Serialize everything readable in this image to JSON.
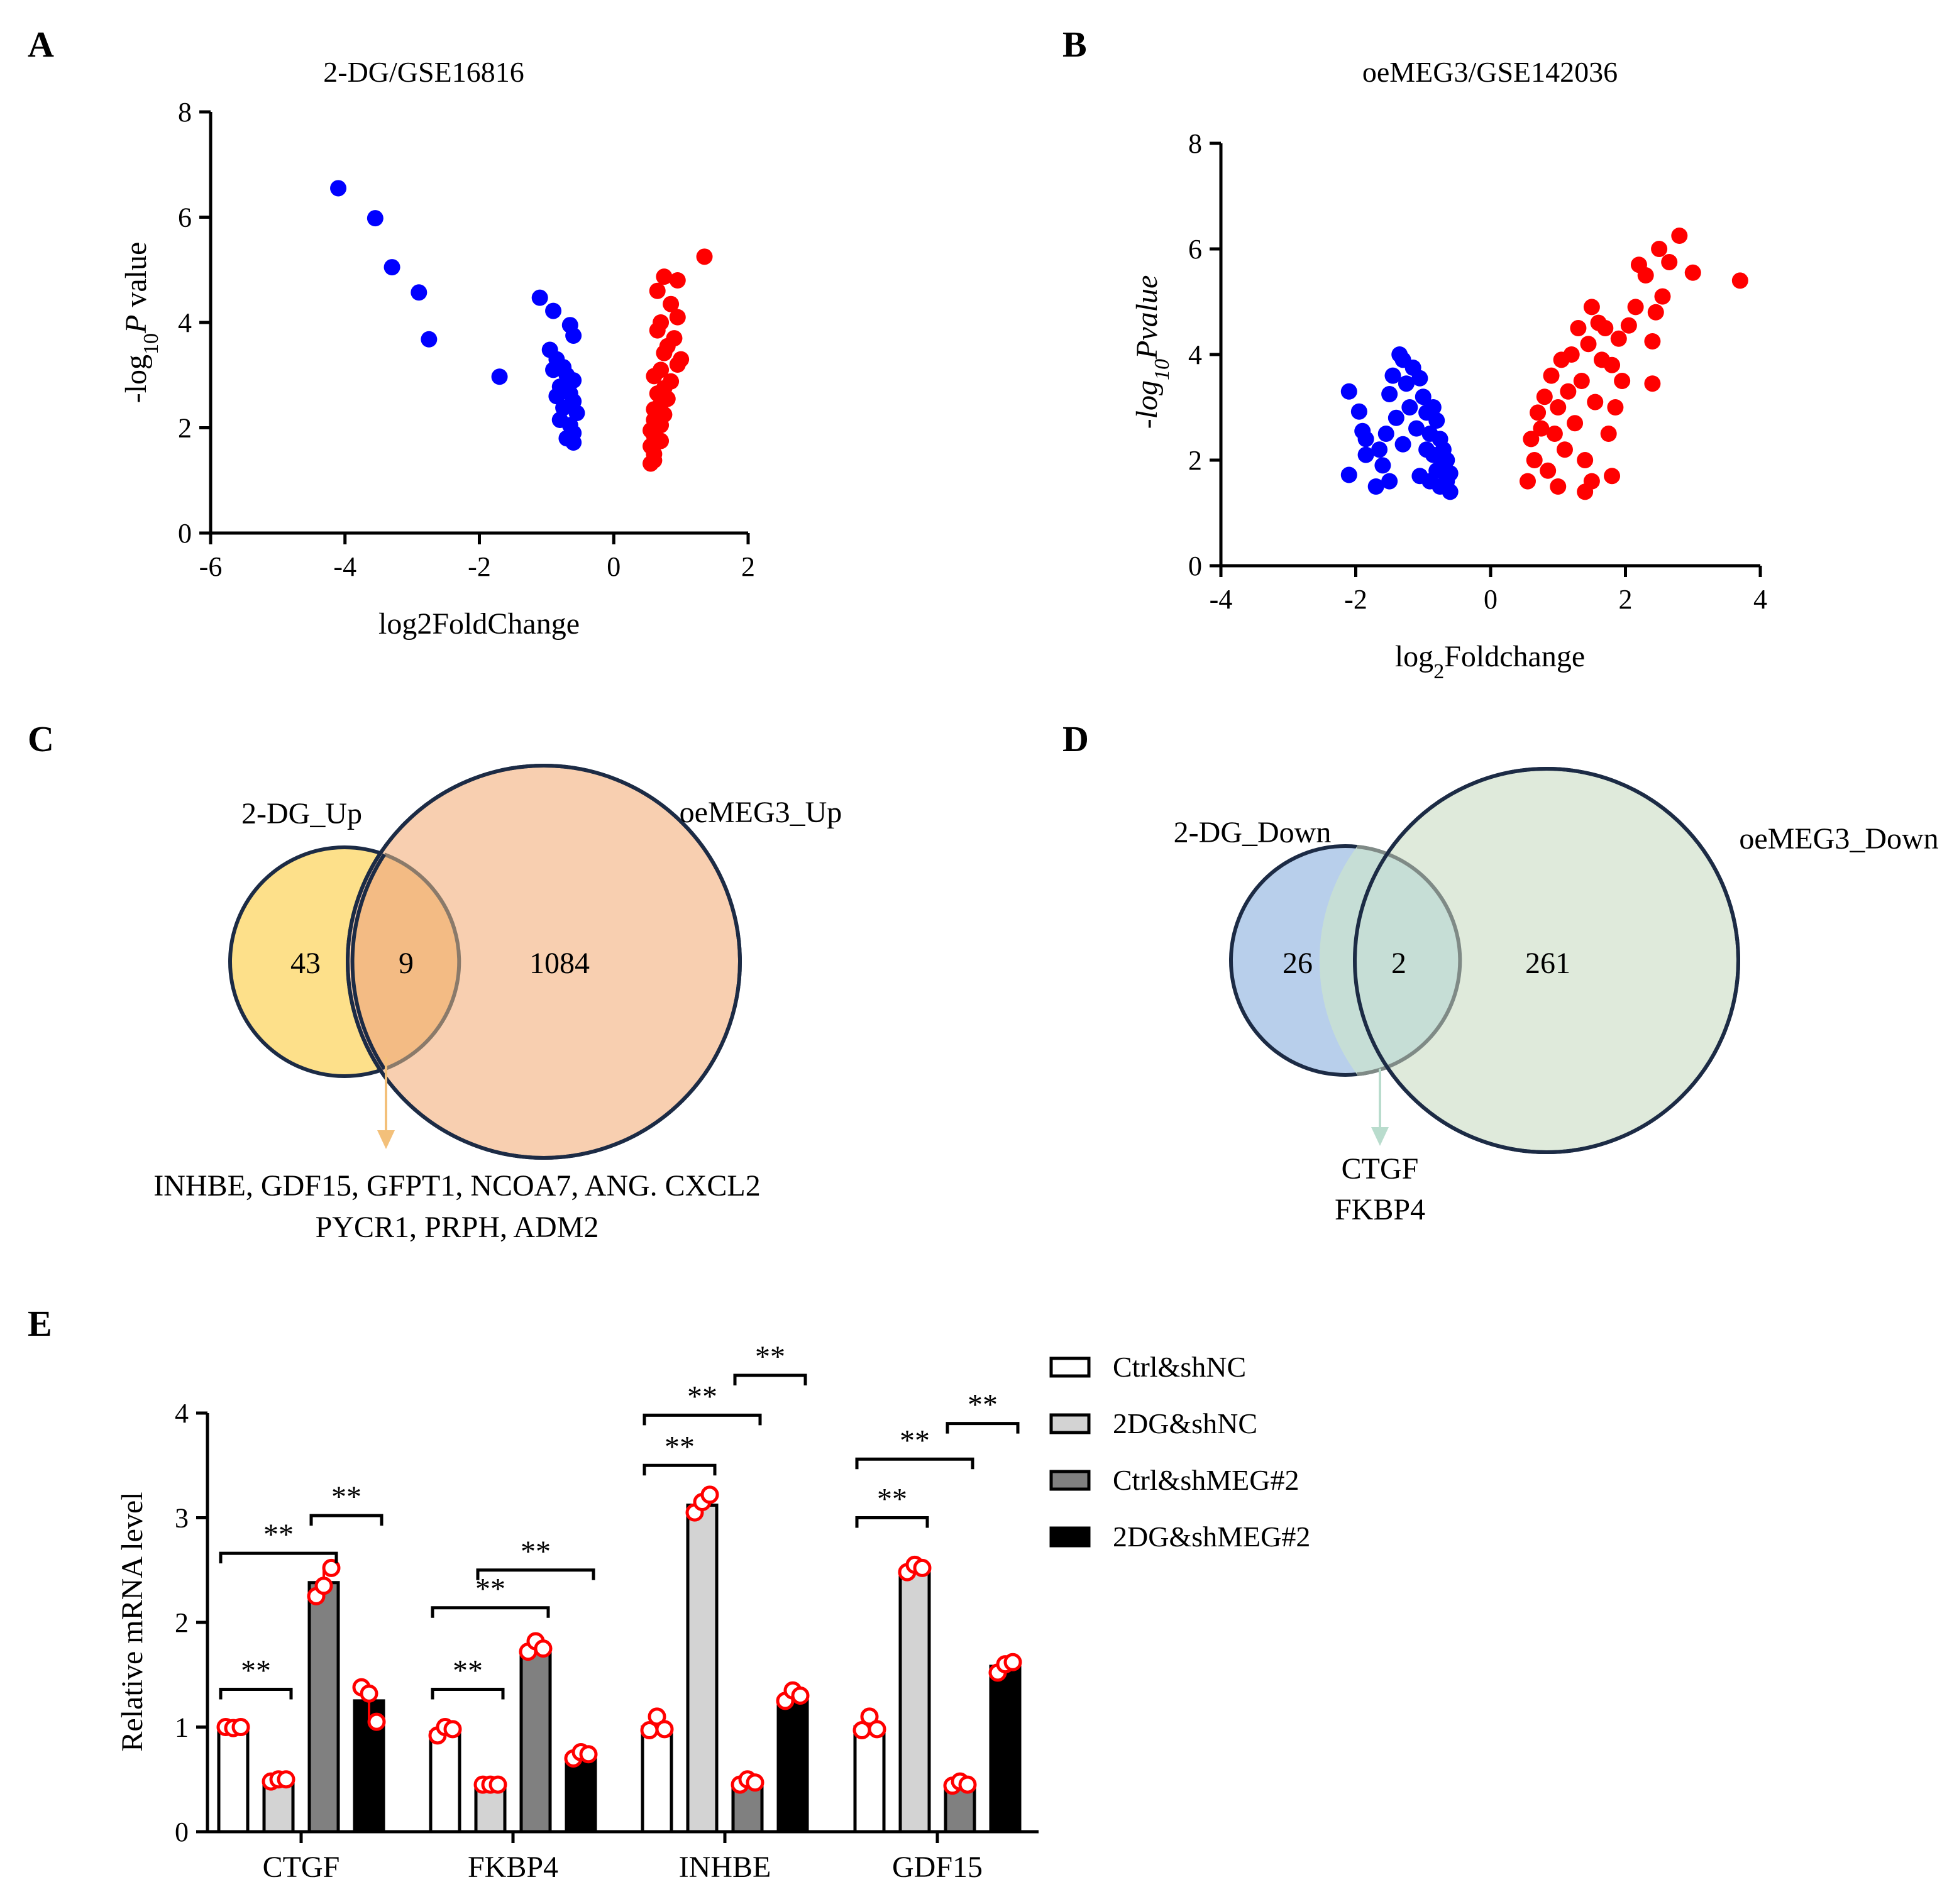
{
  "panels": {
    "A": "A",
    "B": "B",
    "C": "C",
    "D": "D",
    "E": "E"
  },
  "chart_data": [
    {
      "panel": "A",
      "type": "scatter",
      "title": "2-DG/GSE16816",
      "xlabel": "log2FoldChange",
      "ylabel_parts": [
        "-log",
        "10",
        "P",
        " value"
      ],
      "xlim": [
        -6,
        2
      ],
      "ylim": [
        0,
        8
      ],
      "xticks": [
        -6,
        -4,
        -2,
        0,
        2
      ],
      "yticks": [
        0,
        2,
        4,
        6,
        8
      ],
      "colors": {
        "down": "#0000ff",
        "up": "#ff0000"
      },
      "series": [
        {
          "group": "down",
          "points": [
            [
              -4.1,
              6.55
            ],
            [
              -3.55,
              5.98
            ],
            [
              -3.3,
              5.05
            ],
            [
              -2.9,
              4.57
            ],
            [
              -2.75,
              3.68
            ],
            [
              -1.7,
              2.97
            ],
            [
              -1.1,
              4.47
            ],
            [
              -0.9,
              4.22
            ],
            [
              -0.65,
              3.95
            ],
            [
              -0.6,
              3.75
            ],
            [
              -0.95,
              3.48
            ],
            [
              -0.85,
              3.3
            ],
            [
              -0.75,
              3.15
            ],
            [
              -0.7,
              3.0
            ],
            [
              -0.6,
              2.9
            ],
            [
              -0.8,
              2.78
            ],
            [
              -0.65,
              2.65
            ],
            [
              -0.6,
              2.5
            ],
            [
              -0.75,
              2.38
            ],
            [
              -0.55,
              2.28
            ],
            [
              -0.8,
              2.15
            ],
            [
              -0.65,
              2.05
            ],
            [
              -0.6,
              1.9
            ],
            [
              -0.7,
              1.8
            ],
            [
              -0.6,
              1.72
            ],
            [
              -0.85,
              2.6
            ],
            [
              -0.9,
              3.1
            ]
          ]
        },
        {
          "group": "up",
          "points": [
            [
              1.35,
              5.25
            ],
            [
              0.75,
              4.87
            ],
            [
              0.95,
              4.8
            ],
            [
              0.65,
              4.6
            ],
            [
              0.85,
              4.35
            ],
            [
              0.95,
              4.1
            ],
            [
              0.7,
              4.0
            ],
            [
              0.65,
              3.85
            ],
            [
              0.9,
              3.7
            ],
            [
              0.8,
              3.55
            ],
            [
              0.75,
              3.42
            ],
            [
              1.0,
              3.3
            ],
            [
              0.95,
              3.2
            ],
            [
              0.7,
              3.1
            ],
            [
              0.6,
              2.98
            ],
            [
              0.85,
              2.88
            ],
            [
              0.75,
              2.75
            ],
            [
              0.65,
              2.65
            ],
            [
              0.8,
              2.55
            ],
            [
              0.7,
              2.45
            ],
            [
              0.6,
              2.35
            ],
            [
              0.75,
              2.25
            ],
            [
              0.6,
              2.15
            ],
            [
              0.7,
              2.05
            ],
            [
              0.55,
              1.95
            ],
            [
              0.6,
              1.85
            ],
            [
              0.7,
              1.75
            ],
            [
              0.55,
              1.65
            ],
            [
              0.6,
              1.5
            ],
            [
              0.6,
              1.38
            ],
            [
              0.55,
              1.32
            ]
          ]
        }
      ]
    },
    {
      "panel": "B",
      "type": "scatter",
      "title": "oeMEG3/GSE142036",
      "xlabel_parts": [
        "log",
        "2",
        "Foldchange"
      ],
      "ylabel_parts": [
        "-log",
        "10",
        "Pvalue"
      ],
      "xlim": [
        -4,
        4
      ],
      "ylim": [
        0,
        8
      ],
      "xticks": [
        -4,
        -2,
        0,
        2,
        4
      ],
      "yticks": [
        0,
        2,
        4,
        6,
        8
      ],
      "colors": {
        "down": "#0000ff",
        "up": "#ff0000"
      },
      "series": [
        {
          "group": "down",
          "points": [
            [
              -2.1,
              3.3
            ],
            [
              -2.1,
              1.72
            ],
            [
              -1.95,
              2.92
            ],
            [
              -1.9,
              2.55
            ],
            [
              -1.85,
              2.4
            ],
            [
              -1.85,
              2.1
            ],
            [
              -1.7,
              1.5
            ],
            [
              -1.65,
              2.2
            ],
            [
              -1.6,
              1.9
            ],
            [
              -1.55,
              2.5
            ],
            [
              -1.5,
              3.25
            ],
            [
              -1.5,
              1.6
            ],
            [
              -1.45,
              3.6
            ],
            [
              -1.4,
              2.8
            ],
            [
              -1.35,
              4.0
            ],
            [
              -1.3,
              3.9
            ],
            [
              -1.3,
              2.3
            ],
            [
              -1.25,
              3.45
            ],
            [
              -1.2,
              3.0
            ],
            [
              -1.15,
              3.75
            ],
            [
              -1.1,
              2.6
            ],
            [
              -1.05,
              3.55
            ],
            [
              -1.05,
              1.7
            ],
            [
              -1.0,
              3.2
            ],
            [
              -0.95,
              2.2
            ],
            [
              -0.95,
              2.9
            ],
            [
              -0.9,
              2.5
            ],
            [
              -0.9,
              1.6
            ],
            [
              -0.85,
              3.0
            ],
            [
              -0.85,
              2.1
            ],
            [
              -0.8,
              2.75
            ],
            [
              -0.8,
              1.8
            ],
            [
              -0.75,
              2.4
            ],
            [
              -0.75,
              1.5
            ],
            [
              -0.7,
              2.2
            ],
            [
              -0.7,
              1.9
            ],
            [
              -0.65,
              2.0
            ],
            [
              -0.65,
              1.6
            ],
            [
              -0.6,
              1.75
            ],
            [
              -0.6,
              1.4
            ]
          ]
        },
        {
          "group": "up",
          "points": [
            [
              3.7,
              5.4
            ],
            [
              2.8,
              6.25
            ],
            [
              3.0,
              5.55
            ],
            [
              2.65,
              5.75
            ],
            [
              2.5,
              6.0
            ],
            [
              2.55,
              5.1
            ],
            [
              2.45,
              4.8
            ],
            [
              2.4,
              4.25
            ],
            [
              2.4,
              3.45
            ],
            [
              2.3,
              5.5
            ],
            [
              2.2,
              5.7
            ],
            [
              2.15,
              4.9
            ],
            [
              2.05,
              4.55
            ],
            [
              1.95,
              3.5
            ],
            [
              1.9,
              4.3
            ],
            [
              1.85,
              3.0
            ],
            [
              1.8,
              3.8
            ],
            [
              1.75,
              2.5
            ],
            [
              1.7,
              4.5
            ],
            [
              1.65,
              3.9
            ],
            [
              1.6,
              4.6
            ],
            [
              1.55,
              3.1
            ],
            [
              1.5,
              4.9
            ],
            [
              1.45,
              4.2
            ],
            [
              1.4,
              2.0
            ],
            [
              1.35,
              3.5
            ],
            [
              1.3,
              4.5
            ],
            [
              1.25,
              2.7
            ],
            [
              1.2,
              4.0
            ],
            [
              1.15,
              3.3
            ],
            [
              1.1,
              2.2
            ],
            [
              1.05,
              3.9
            ],
            [
              1.0,
              3.0
            ],
            [
              0.95,
              2.5
            ],
            [
              0.9,
              3.6
            ],
            [
              0.85,
              1.8
            ],
            [
              0.8,
              3.2
            ],
            [
              0.75,
              2.6
            ],
            [
              0.7,
              2.9
            ],
            [
              0.65,
              2.0
            ],
            [
              0.6,
              2.4
            ],
            [
              0.55,
              1.6
            ],
            [
              1.4,
              1.4
            ],
            [
              1.5,
              1.6
            ],
            [
              1.0,
              1.5
            ],
            [
              1.8,
              1.7
            ]
          ]
        }
      ]
    },
    {
      "panel": "E",
      "type": "bar",
      "ylabel": "Relative mRNA level",
      "ylim": [
        0,
        4
      ],
      "yticks": [
        0,
        1,
        2,
        3,
        4
      ],
      "categories": [
        "CTGF",
        "FKBP4",
        "INHBE",
        "GDF15"
      ],
      "series": [
        {
          "name": "Ctrl&shNC",
          "color": "#ffffff",
          "values": [
            1.0,
            0.95,
            1.0,
            1.0
          ],
          "points": [
            [
              1.0,
              0.99,
              1.0
            ],
            [
              0.92,
              1.0,
              0.98
            ],
            [
              0.97,
              1.1,
              0.98
            ],
            [
              0.97,
              1.1,
              0.98
            ]
          ]
        },
        {
          "name": "2DG&shNC",
          "color": "#d3d3d3",
          "values": [
            0.5,
            0.45,
            3.12,
            2.5
          ],
          "points": [
            [
              0.48,
              0.5,
              0.5
            ],
            [
              0.45,
              0.45,
              0.45
            ],
            [
              3.05,
              3.15,
              3.22
            ],
            [
              2.48,
              2.55,
              2.52
            ]
          ]
        },
        {
          "name": "Ctrl&shMEG#2",
          "color": "#808080",
          "values": [
            2.38,
            1.72,
            0.47,
            0.45
          ],
          "points": [
            [
              2.25,
              2.35,
              2.52
            ],
            [
              1.72,
              1.82,
              1.75
            ],
            [
              0.45,
              0.5,
              0.47
            ],
            [
              0.44,
              0.48,
              0.45
            ]
          ]
        },
        {
          "name": "2DG&shMEG#2",
          "color": "#000000",
          "values": [
            1.25,
            0.72,
            1.27,
            1.58
          ],
          "points": [
            [
              1.38,
              1.32,
              1.05
            ],
            [
              0.7,
              0.76,
              0.74
            ],
            [
              1.25,
              1.35,
              1.3
            ],
            [
              1.52,
              1.6,
              1.62
            ]
          ]
        }
      ],
      "significance": [
        {
          "category": 0,
          "from": 0,
          "to": 1,
          "y": 1.36,
          "label": "**"
        },
        {
          "category": 0,
          "from": 0,
          "to": 2,
          "y": 2.66,
          "label": "**"
        },
        {
          "category": 0,
          "from": 2,
          "to": 3,
          "y": 3.02,
          "label": "**"
        },
        {
          "category": 1,
          "from": 0,
          "to": 1,
          "y": 1.36,
          "label": "**"
        },
        {
          "category": 1,
          "from": 0,
          "to": 2,
          "y": 2.14,
          "label": "**"
        },
        {
          "category": 1,
          "from": 1,
          "to": 3,
          "y": 2.5,
          "label": "**"
        },
        {
          "category": 2,
          "from": 0,
          "to": 1,
          "y": 3.5,
          "label": "**"
        },
        {
          "category": 2,
          "from": 0,
          "to": 2,
          "y": 3.98,
          "label": "**"
        },
        {
          "category": 2,
          "from": 2,
          "to": 3,
          "y": 4.36,
          "label": "**"
        },
        {
          "category": 3,
          "from": 0,
          "to": 1,
          "y": 3.0,
          "label": "**"
        },
        {
          "category": 3,
          "from": 0,
          "to": 2,
          "y": 3.56,
          "label": "**"
        },
        {
          "category": 3,
          "from": 2,
          "to": 3,
          "y": 3.9,
          "label": "**"
        }
      ]
    }
  ],
  "venn": [
    {
      "panel": "C",
      "left_label": "2-DG_Up",
      "right_label": "oeMEG3_Up",
      "left_only": "43",
      "overlap": "9",
      "right_only": "1084",
      "left_color": "#fde08a",
      "right_color": "#f8cfb0",
      "overlap_color": "#f3bb84",
      "arrow_color": "#f3c07a",
      "genes": [
        "INHBE, GDF15, GFPT1, NCOA7, ANG. CXCL2",
        "PYCR1, PRPH, ADM2"
      ]
    },
    {
      "panel": "D",
      "left_label": "2-DG_Down",
      "right_label": "oeMEG3_Down",
      "left_only": "26",
      "overlap": "2",
      "right_only": "261",
      "left_color": "#b8cfeb",
      "right_color": "#dfeadb",
      "overlap_color": "#c6ded6",
      "arrow_color": "#b9dccd",
      "genes": [
        "CTGF",
        "FKBP4"
      ]
    }
  ]
}
